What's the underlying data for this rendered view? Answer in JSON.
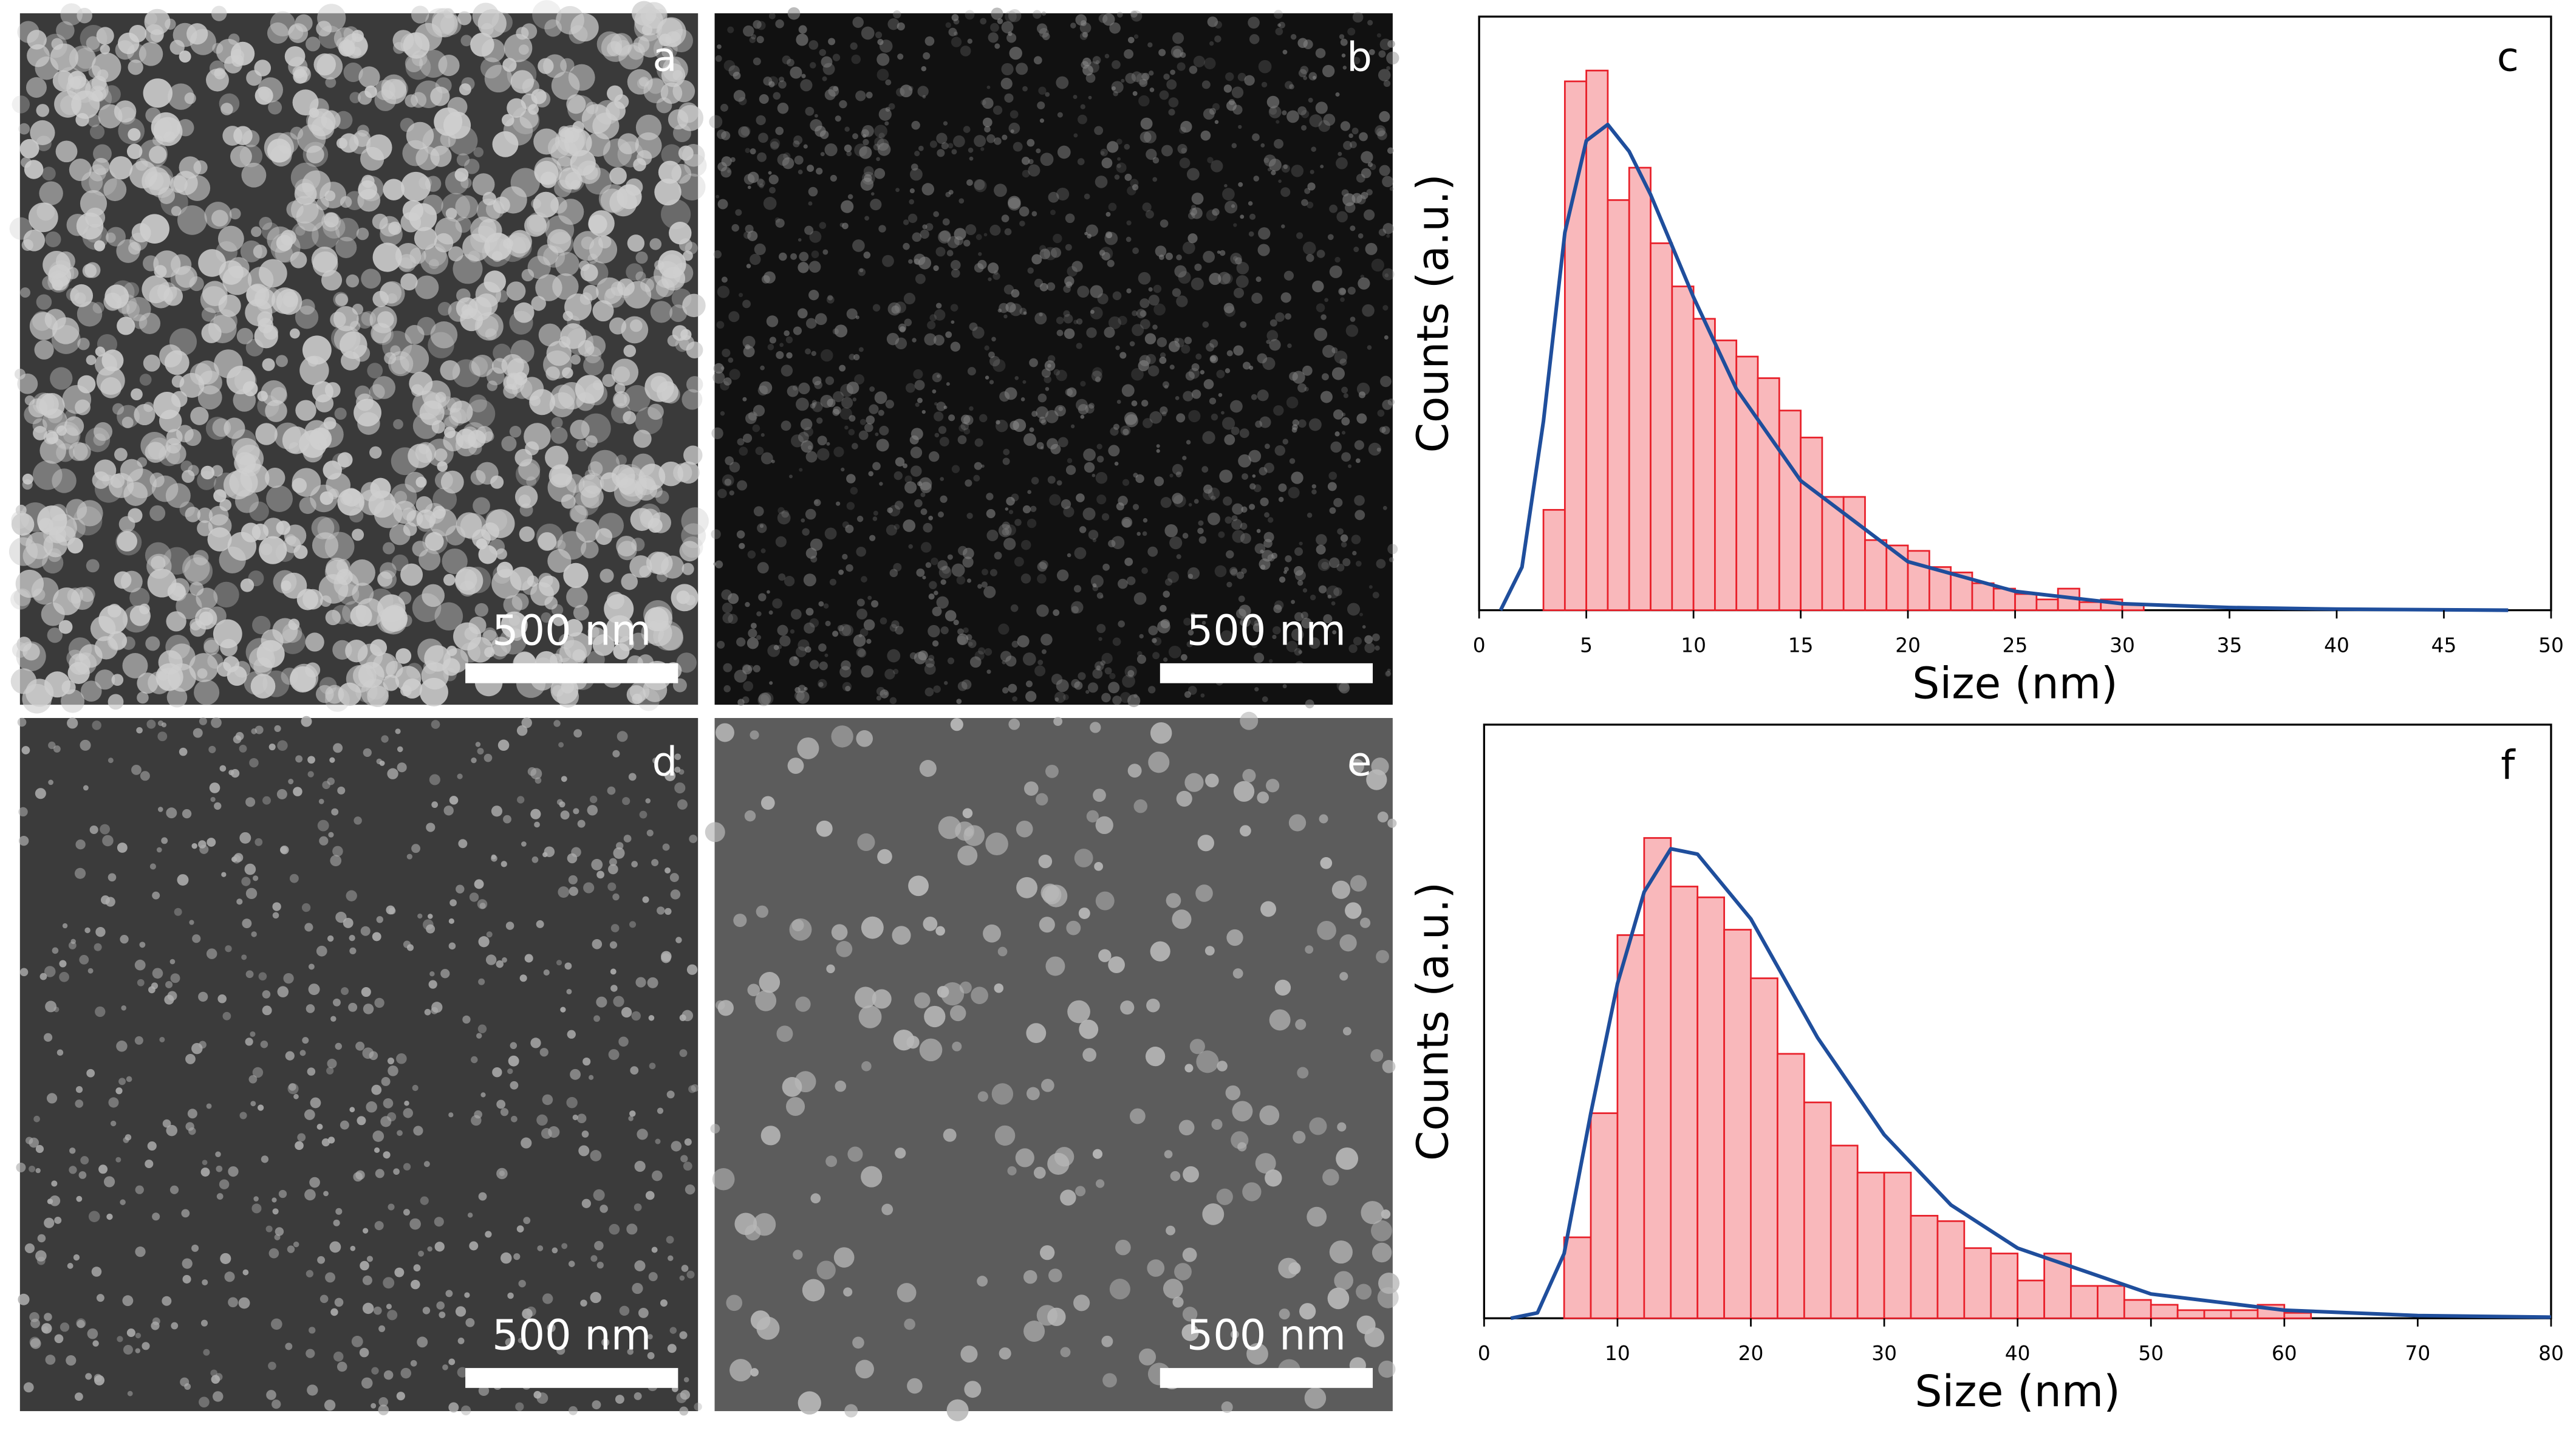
{
  "images": [
    {
      "label": "a",
      "scale_bar": "500 nm"
    },
    {
      "label": "b",
      "scale_bar": "500 nm"
    },
    {
      "label": "d",
      "scale_bar": "500 nm"
    },
    {
      "label": "e",
      "scale_bar": "500 nm"
    }
  ],
  "chart_data": [
    {
      "type": "histogram",
      "label": "c",
      "xlabel": "Size (nm)",
      "ylabel": "Counts (a.u.)",
      "bins": [
        3,
        4,
        5,
        6,
        7,
        8,
        9,
        10,
        11,
        12,
        13,
        14,
        15,
        16,
        17,
        18,
        19,
        20,
        21,
        22,
        23,
        24,
        25,
        26,
        27,
        28,
        29,
        30,
        31
      ],
      "counts": [
        18.6,
        98,
        100,
        76,
        82,
        68,
        60,
        54,
        50,
        47,
        43,
        37,
        32,
        21,
        21,
        13,
        12,
        11,
        8,
        7,
        5,
        4,
        3,
        2,
        4,
        1.5,
        2,
        1
      ],
      "color": "#f9b8bb",
      "edgecolor": "#e8202a",
      "xlim": [
        0,
        50
      ],
      "ylim": [
        0,
        110
      ],
      "xticks": [
        0,
        5,
        10,
        15,
        20,
        25,
        30,
        35,
        40,
        45,
        50
      ],
      "fit": {
        "color": "#1f4e9c",
        "x": [
          1,
          2,
          3,
          4,
          5,
          6,
          7,
          8,
          10,
          12,
          15,
          20,
          25,
          30,
          35,
          40,
          48
        ],
        "values": [
          0,
          8,
          35,
          70,
          87,
          90,
          85,
          77,
          58,
          41,
          24,
          9,
          3.5,
          1.2,
          0.5,
          0.2,
          0
        ]
      }
    },
    {
      "type": "histogram",
      "label": "f",
      "xlabel": "Size (nm)",
      "ylabel": "Counts (a.u.)",
      "bins": [
        6,
        8,
        10,
        12,
        14,
        16,
        18,
        20,
        22,
        24,
        26,
        28,
        30,
        32,
        34,
        36,
        38,
        40,
        42,
        44,
        46,
        48,
        50,
        52,
        54,
        56,
        58,
        60,
        62
      ],
      "counts": [
        15,
        38,
        71,
        89,
        80,
        78,
        72,
        63,
        49,
        40,
        32,
        27,
        27,
        19,
        18,
        13,
        12,
        7,
        12,
        6,
        6,
        3.4,
        2.5,
        1.5,
        1.5,
        1.5,
        2.5,
        1
      ],
      "color": "#f9b8bb",
      "edgecolor": "#e8202a",
      "xlim": [
        0,
        80
      ],
      "ylim": [
        0,
        110
      ],
      "xticks": [
        0,
        10,
        20,
        30,
        40,
        50,
        60,
        70,
        80
      ],
      "fit": {
        "color": "#1f4e9c",
        "x": [
          2,
          4,
          6,
          8,
          10,
          12,
          14,
          16,
          20,
          25,
          30,
          35,
          40,
          50,
          60,
          70,
          80
        ],
        "values": [
          0,
          1,
          12,
          38,
          62,
          79,
          87,
          86,
          74,
          52,
          34,
          21,
          13,
          4.5,
          1.5,
          0.5,
          0.2
        ]
      }
    }
  ]
}
